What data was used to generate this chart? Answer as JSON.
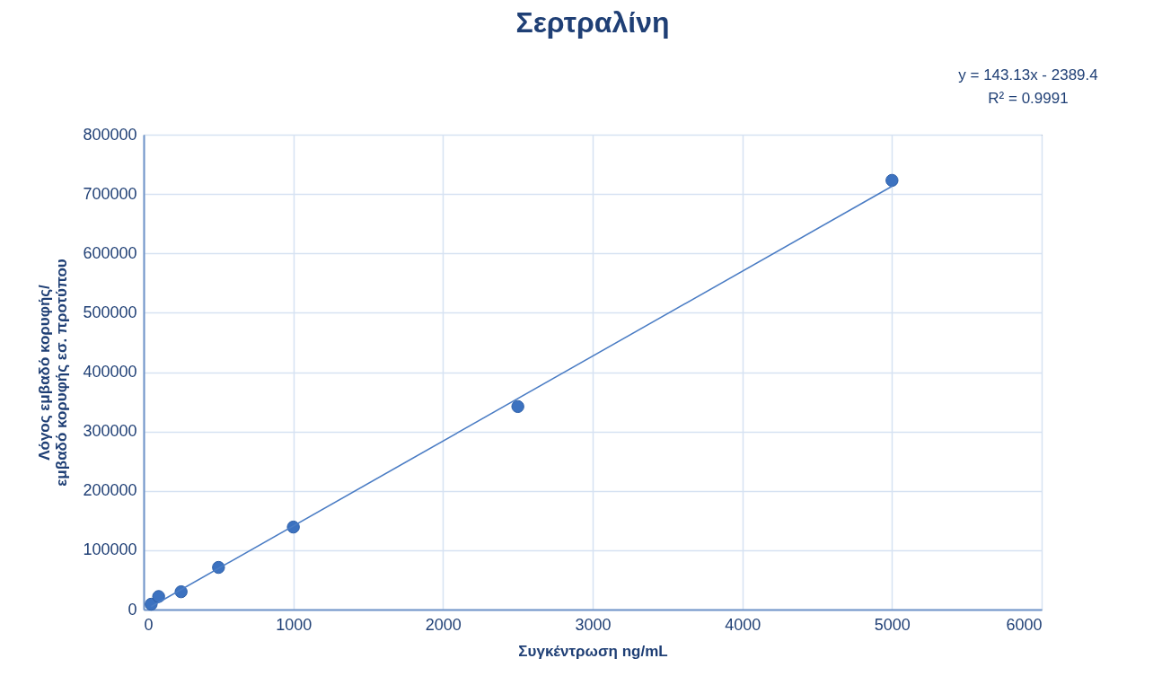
{
  "chart_data": {
    "type": "scatter",
    "title": "Σερτραλίνη",
    "xlabel": "Συγκέντρωση ng/mL",
    "ylabel": "Λόγος εμβαδό κορυφής/\nεμβαδό κορυφής εσ. προτύπου",
    "annotations": [
      "y = 143.13x - 2389.4",
      "R² = 0.9991"
    ],
    "series": [
      {
        "color": "#3c72c0",
        "x": [
          50,
          100,
          250,
          500,
          1000,
          2500,
          5000
        ],
        "values": [
          9000,
          22000,
          30000,
          71000,
          139000,
          342000,
          723000
        ],
        "marker": "circle"
      },
      {
        "type": "line",
        "color": "#4a7cc4",
        "x": [
          50,
          5000
        ],
        "values": [
          5000,
          713000
        ],
        "line_style": "solid"
      }
    ],
    "xlim": [
      0,
      6000
    ],
    "xticks": [
      0,
      1000,
      2000,
      3000,
      4000,
      5000,
      6000
    ],
    "ylim": [
      0,
      800000
    ],
    "yticks": [
      0,
      100000,
      200000,
      300000,
      400000,
      500000,
      600000,
      700000,
      800000
    ],
    "grid": true
  }
}
